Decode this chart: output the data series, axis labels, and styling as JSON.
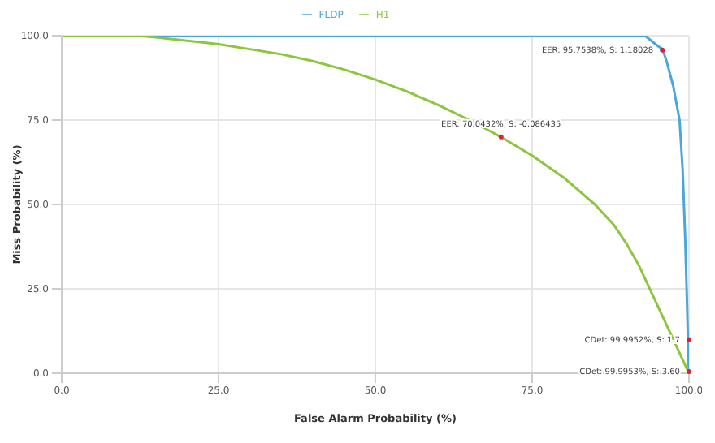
{
  "chart_data": {
    "type": "line",
    "xlabel": "False Alarm Probability (%)",
    "ylabel": "Miss Probability (%)",
    "xlim": [
      0,
      100
    ],
    "ylim": [
      0,
      100
    ],
    "xticks": [
      {
        "value": 0,
        "label": "0.0"
      },
      {
        "value": 25,
        "label": "25.0"
      },
      {
        "value": 50,
        "label": "50.0"
      },
      {
        "value": 75,
        "label": "75.0"
      },
      {
        "value": 100,
        "label": "100.0"
      }
    ],
    "yticks": [
      {
        "value": 0,
        "label": "0.0"
      },
      {
        "value": 25,
        "label": "25.0"
      },
      {
        "value": 50,
        "label": "50.0"
      },
      {
        "value": 75,
        "label": "75.0"
      },
      {
        "value": 100,
        "label": "100.0"
      }
    ],
    "grid": true,
    "legend": "top",
    "marker": "none",
    "line_style": "solid",
    "series": [
      {
        "name": "FLDP",
        "color": "#4aa8d8",
        "x": [
          0,
          50,
          90,
          93,
          94,
          95,
          95.8,
          96.5,
          97.5,
          98.5,
          99,
          99.4,
          99.7,
          99.9,
          100
        ],
        "values": [
          100,
          100,
          100,
          100,
          98.5,
          97,
          96,
          92,
          85,
          75,
          60,
          40,
          20,
          5,
          0
        ]
      },
      {
        "name": "H1",
        "color": "#8cc63f",
        "x": [
          0,
          12,
          15,
          20,
          25,
          30,
          35,
          40,
          45,
          50,
          55,
          60,
          65,
          70,
          75,
          80,
          85,
          88,
          90,
          92,
          94,
          96,
          97.5,
          99,
          100
        ],
        "values": [
          100,
          100,
          99.5,
          98.5,
          97.5,
          96,
          94.5,
          92.5,
          90,
          87,
          83.5,
          79.5,
          75,
          70,
          64.5,
          58,
          50,
          44,
          38.5,
          32,
          24,
          16,
          10,
          4,
          0
        ]
      }
    ],
    "annotations": [
      {
        "text": "EER: 95.7538%, S: 1.18028",
        "x": 95.75,
        "y": 95.75
      },
      {
        "text": "EER: 70.0432%, S: -0.086435",
        "x": 70.04,
        "y": 70.04
      },
      {
        "text": "CDet: 99.9952%, S: 1.7",
        "x": 99.99,
        "y": 10
      },
      {
        "text": "CDet: 99.9953%, S: 3.60",
        "x": 99.99,
        "y": 0.5
      }
    ]
  }
}
